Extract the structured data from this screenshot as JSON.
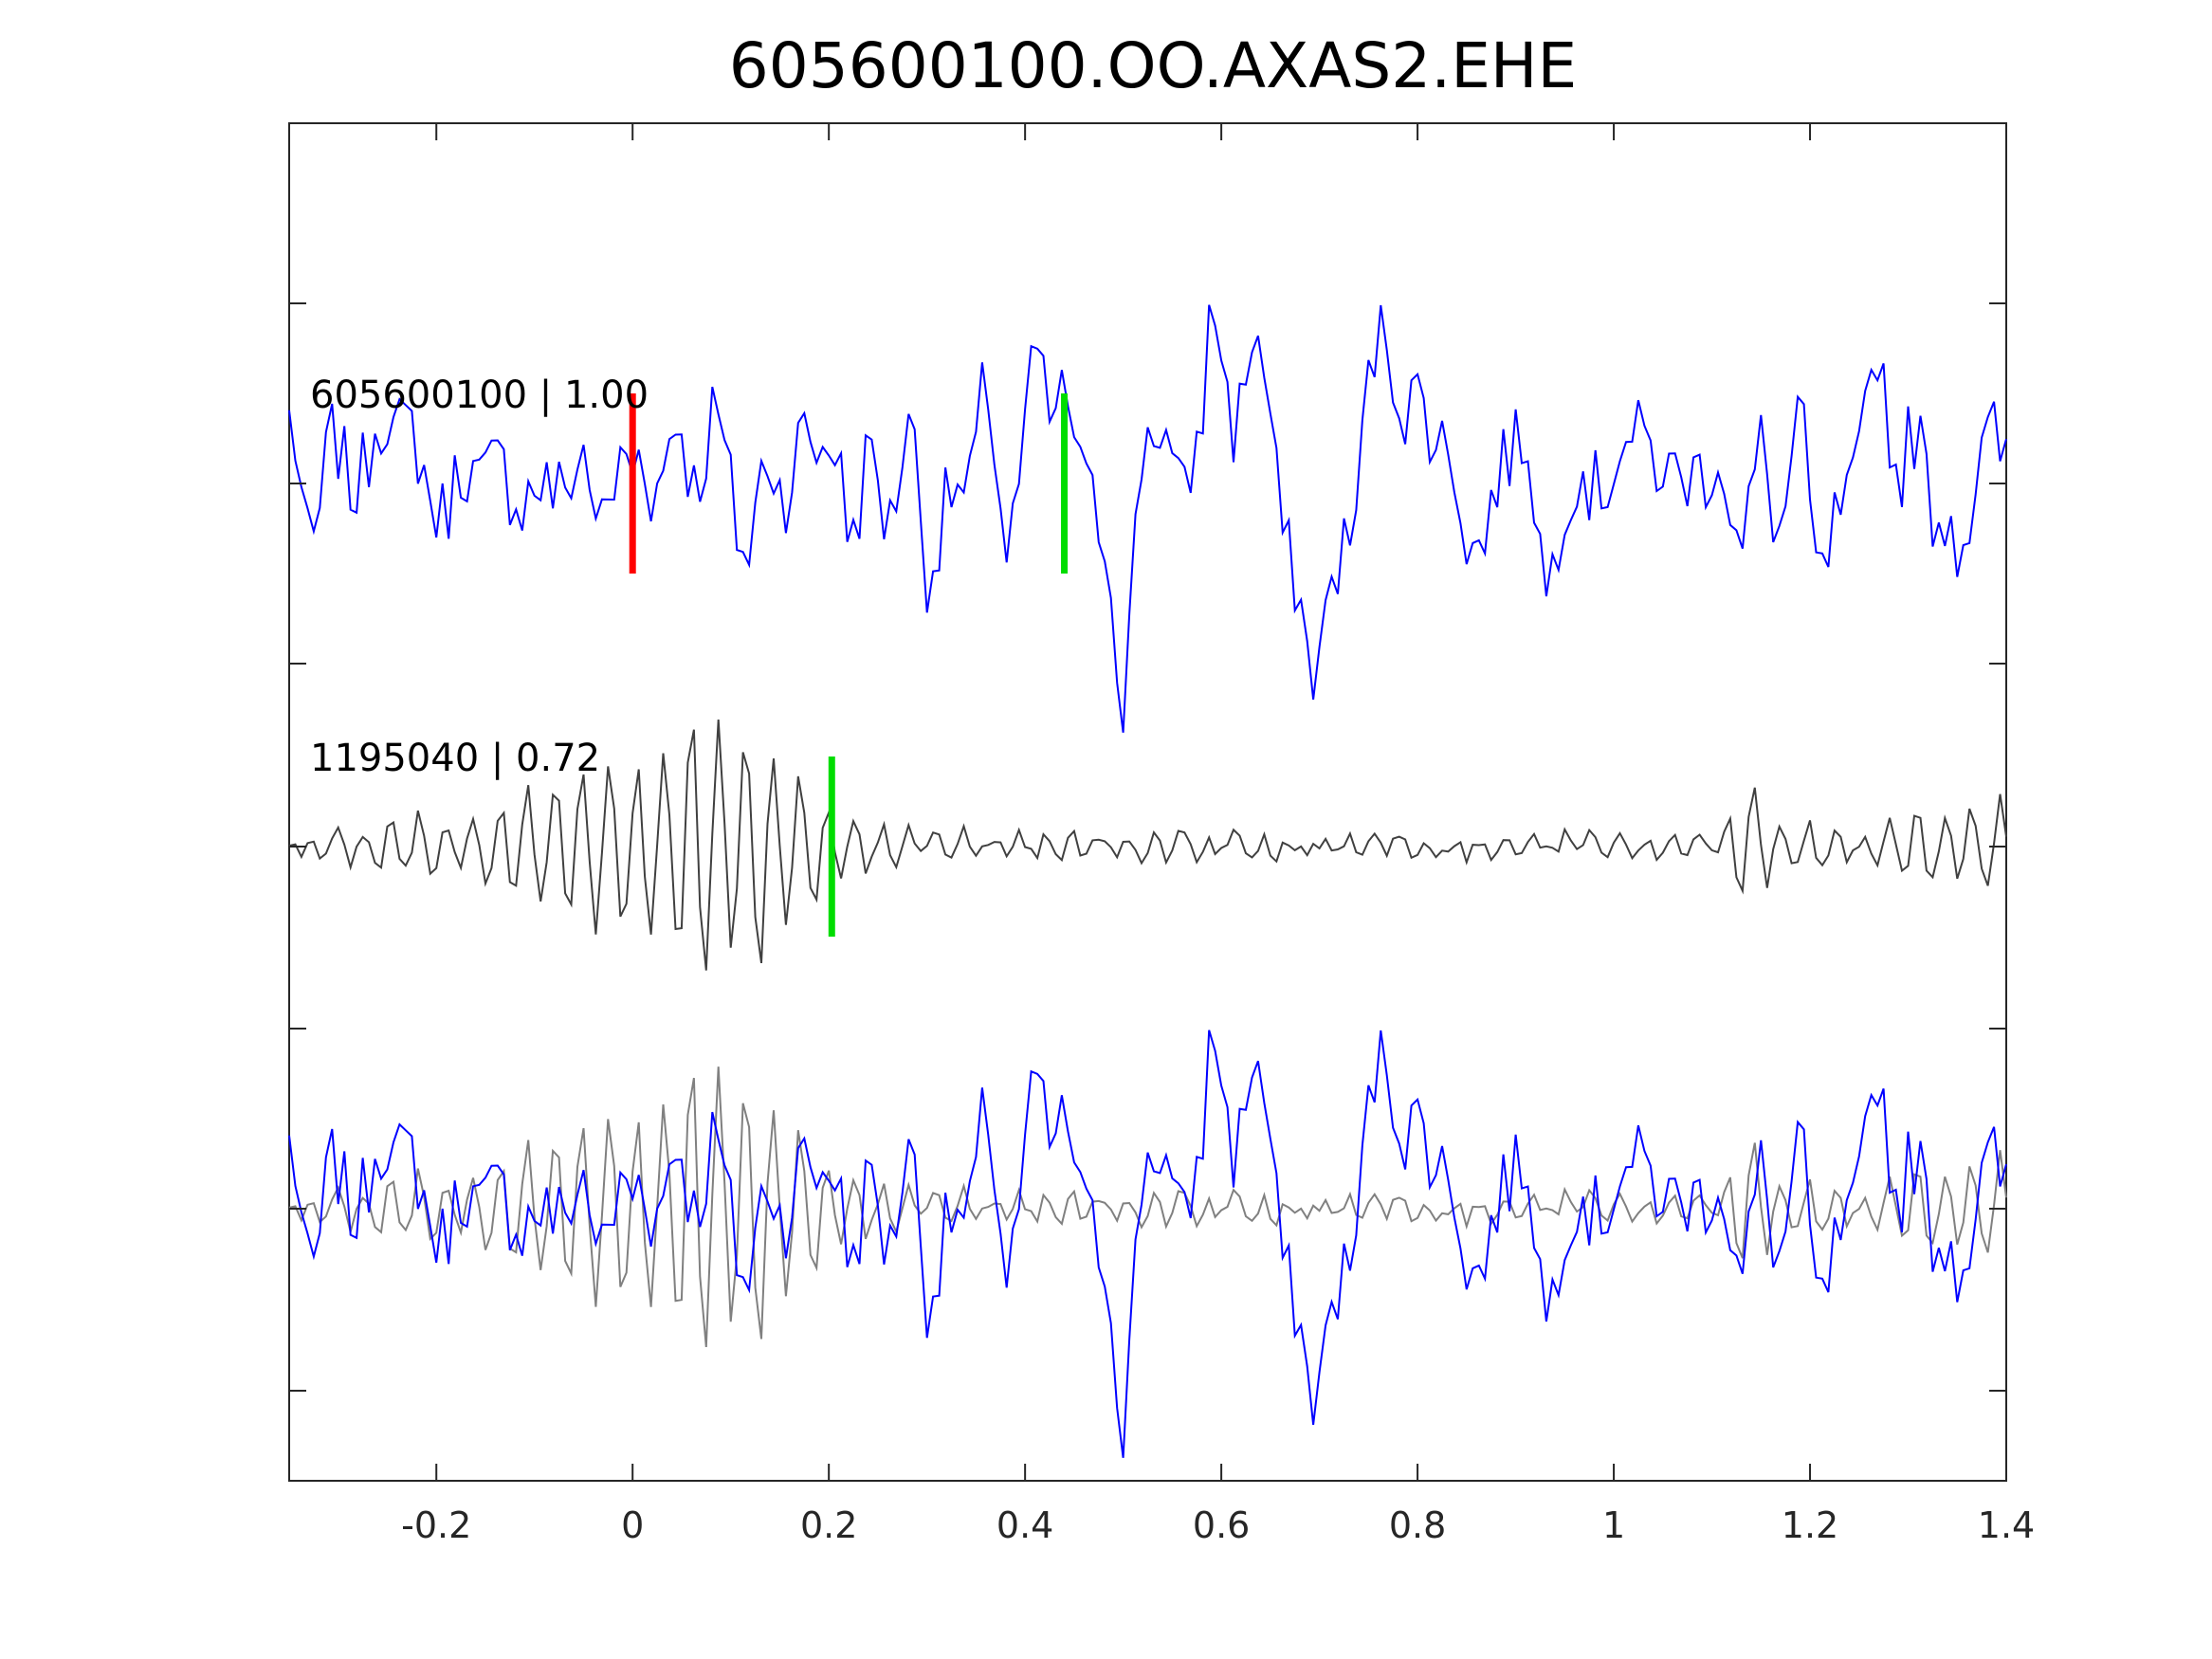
{
  "chart_data": {
    "type": "line",
    "title": "605600100.OO.AXAS2.EHE",
    "xlabel": "",
    "ylabel": "",
    "xlim": [
      -0.35,
      1.4
    ],
    "x_ticks": [
      -0.2,
      0,
      0.2,
      0.4,
      0.6,
      0.8,
      1,
      1.2,
      1.4
    ],
    "x_tick_labels": [
      "-0.2",
      "0",
      "0.2",
      "0.4",
      "0.6",
      "0.8",
      "1",
      "1.2",
      "1.4"
    ],
    "grid": false,
    "sample_interval": 0.00625,
    "traces": [
      {
        "label": "605600100 | 1.00",
        "color": "#0000ff",
        "picks": [
          {
            "x": 0.0,
            "color": "#ff0000"
          },
          {
            "x": 0.44,
            "color": "#00dd00"
          }
        ]
      },
      {
        "label": "1195040 | 0.72",
        "color": "#404040",
        "picks": [
          {
            "x": 0.203,
            "color": "#00dd00"
          }
        ]
      }
    ],
    "overlay": {
      "series": [
        "605600100 | 1.00",
        "1195040 | 0.72"
      ],
      "colors": [
        "#0000ff",
        "#808080"
      ]
    },
    "waveform_keypoints": {
      "605600100": [
        [
          -0.35,
          0.3
        ],
        [
          -0.33,
          -0.35
        ],
        [
          -0.31,
          0.15
        ],
        [
          -0.27,
          0.05
        ],
        [
          -0.25,
          0.5
        ],
        [
          -0.23,
          0.2
        ],
        [
          -0.21,
          0.1
        ],
        [
          -0.19,
          -0.3
        ],
        [
          -0.17,
          0.25
        ],
        [
          -0.15,
          -0.1
        ],
        [
          -0.13,
          0.2
        ],
        [
          -0.11,
          -0.25
        ],
        [
          -0.09,
          0.15
        ],
        [
          -0.07,
          -0.2
        ],
        [
          -0.05,
          0.3
        ],
        [
          -0.03,
          -0.4
        ],
        [
          -0.01,
          0.3
        ],
        [
          0.0,
          0.1
        ],
        [
          0.02,
          -0.05
        ],
        [
          0.04,
          0.35
        ],
        [
          0.06,
          0.0
        ],
        [
          0.08,
          0.35
        ],
        [
          0.1,
          0.0
        ],
        [
          0.12,
          -0.45
        ],
        [
          0.14,
          0.25
        ],
        [
          0.16,
          -0.1
        ],
        [
          0.18,
          0.35
        ],
        [
          0.2,
          0.2
        ],
        [
          0.22,
          -0.2
        ],
        [
          0.24,
          0.1
        ],
        [
          0.26,
          -0.2
        ],
        [
          0.28,
          0.35
        ],
        [
          0.3,
          -0.4
        ],
        [
          0.32,
          -0.2
        ],
        [
          0.34,
          0.0
        ],
        [
          0.36,
          0.5
        ],
        [
          0.38,
          -0.3
        ],
        [
          0.4,
          0.1
        ],
        [
          0.41,
          0.8
        ],
        [
          0.43,
          0.4
        ],
        [
          0.45,
          0.3
        ],
        [
          0.47,
          -0.1
        ],
        [
          0.49,
          -0.7
        ],
        [
          0.5,
          -1.1
        ],
        [
          0.52,
          0.1
        ],
        [
          0.54,
          0.5
        ],
        [
          0.56,
          -0.3
        ],
        [
          0.58,
          0.5
        ],
        [
          0.59,
          1.0
        ],
        [
          0.61,
          0.3
        ],
        [
          0.63,
          0.8
        ],
        [
          0.65,
          0.4
        ],
        [
          0.67,
          -0.5
        ],
        [
          0.69,
          -1.0
        ],
        [
          0.71,
          -0.7
        ],
        [
          0.73,
          -0.3
        ],
        [
          0.75,
          0.5
        ],
        [
          0.77,
          0.9
        ],
        [
          0.79,
          0.3
        ],
        [
          0.81,
          0.5
        ],
        [
          0.83,
          0.1
        ],
        [
          0.85,
          -0.2
        ],
        [
          0.87,
          -0.4
        ],
        [
          0.89,
          0.3
        ],
        [
          0.91,
          0.2
        ],
        [
          0.93,
          -0.5
        ],
        [
          0.95,
          -0.2
        ],
        [
          0.97,
          0.2
        ],
        [
          0.99,
          -0.2
        ],
        [
          1.01,
          0.4
        ],
        [
          1.03,
          0.1
        ],
        [
          1.05,
          0.2
        ],
        [
          1.07,
          -0.1
        ],
        [
          1.09,
          0.2
        ],
        [
          1.11,
          0.0
        ],
        [
          1.13,
          -0.3
        ],
        [
          1.15,
          0.1
        ],
        [
          1.17,
          -0.2
        ],
        [
          1.19,
          0.3
        ],
        [
          1.21,
          -0.5
        ],
        [
          1.23,
          -0.3
        ],
        [
          1.25,
          0.2
        ],
        [
          1.27,
          0.7
        ],
        [
          1.29,
          0.1
        ],
        [
          1.31,
          0.2
        ],
        [
          1.33,
          -0.1
        ],
        [
          1.35,
          -0.4
        ],
        [
          1.37,
          0.1
        ],
        [
          1.4,
          0.2
        ]
      ],
      "1195040": [
        [
          -0.35,
          0.0
        ],
        [
          -0.3,
          0.1
        ],
        [
          -0.25,
          0.15
        ],
        [
          -0.2,
          0.2
        ],
        [
          -0.15,
          0.3
        ],
        [
          -0.1,
          0.4
        ],
        [
          -0.05,
          0.5
        ],
        [
          0.0,
          0.6
        ],
        [
          0.05,
          0.8
        ],
        [
          0.08,
          1.0
        ],
        [
          0.1,
          0.9
        ],
        [
          0.13,
          0.8
        ],
        [
          0.16,
          0.6
        ],
        [
          0.19,
          0.35
        ],
        [
          0.21,
          0.25
        ],
        [
          0.24,
          0.15
        ],
        [
          0.3,
          0.08
        ],
        [
          0.4,
          0.07
        ],
        [
          0.5,
          0.08
        ],
        [
          0.6,
          0.08
        ],
        [
          0.7,
          0.06
        ],
        [
          0.8,
          0.07
        ],
        [
          0.9,
          0.06
        ],
        [
          1.0,
          0.06
        ],
        [
          1.1,
          0.07
        ],
        [
          1.14,
          0.5
        ],
        [
          1.17,
          0.15
        ],
        [
          1.25,
          0.1
        ],
        [
          1.3,
          0.25
        ],
        [
          1.35,
          0.3
        ],
        [
          1.4,
          0.3
        ]
      ]
    }
  }
}
